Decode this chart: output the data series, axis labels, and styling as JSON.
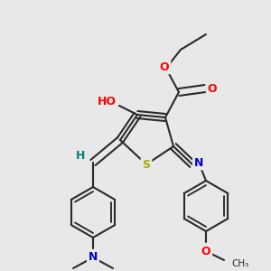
{
  "background_color": "#e8e8e8",
  "bond_color": "#2a2a2a",
  "bond_width": 1.5,
  "atom_colors": {
    "O": "#ff0000",
    "N": "#0000cc",
    "S": "#aaaa00",
    "H": "#008080",
    "C": "#2a2a2a"
  },
  "figsize": [
    3.0,
    3.0
  ],
  "dpi": 100
}
